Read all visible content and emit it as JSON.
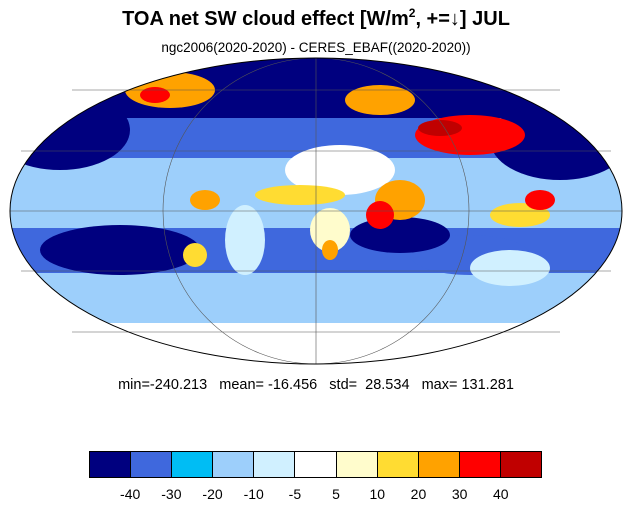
{
  "title": {
    "main_text": "TOA net SW cloud effect [W/m",
    "superscript": "2",
    "suffix": ", +=↓]  JUL"
  },
  "subtitle": "ngc2006(2020-2020) - CERES_EBAF((2020-2020))",
  "stats": {
    "text": "min=-240.213   mean= -16.456   std=  28.534   max= 131.281",
    "min": -240.213,
    "mean": -16.456,
    "std": 28.534,
    "max": 131.281
  },
  "map": {
    "projection": "mollweide",
    "field": "TOA net SW cloud effect difference (model minus observations)",
    "units": "W/m2",
    "month": "JUL"
  },
  "colorbar": {
    "colors": [
      "#00007f",
      "#3f68dd",
      "#00bdf4",
      "#9dcffb",
      "#d0f0ff",
      "#ffffff",
      "#fffccc",
      "#ffdc32",
      "#ffa200",
      "#ff0000",
      "#c00000"
    ],
    "labels": [
      "-40",
      "-30",
      "-20",
      "-10",
      "-5",
      "5",
      "10",
      "20",
      "30",
      "40"
    ]
  }
}
